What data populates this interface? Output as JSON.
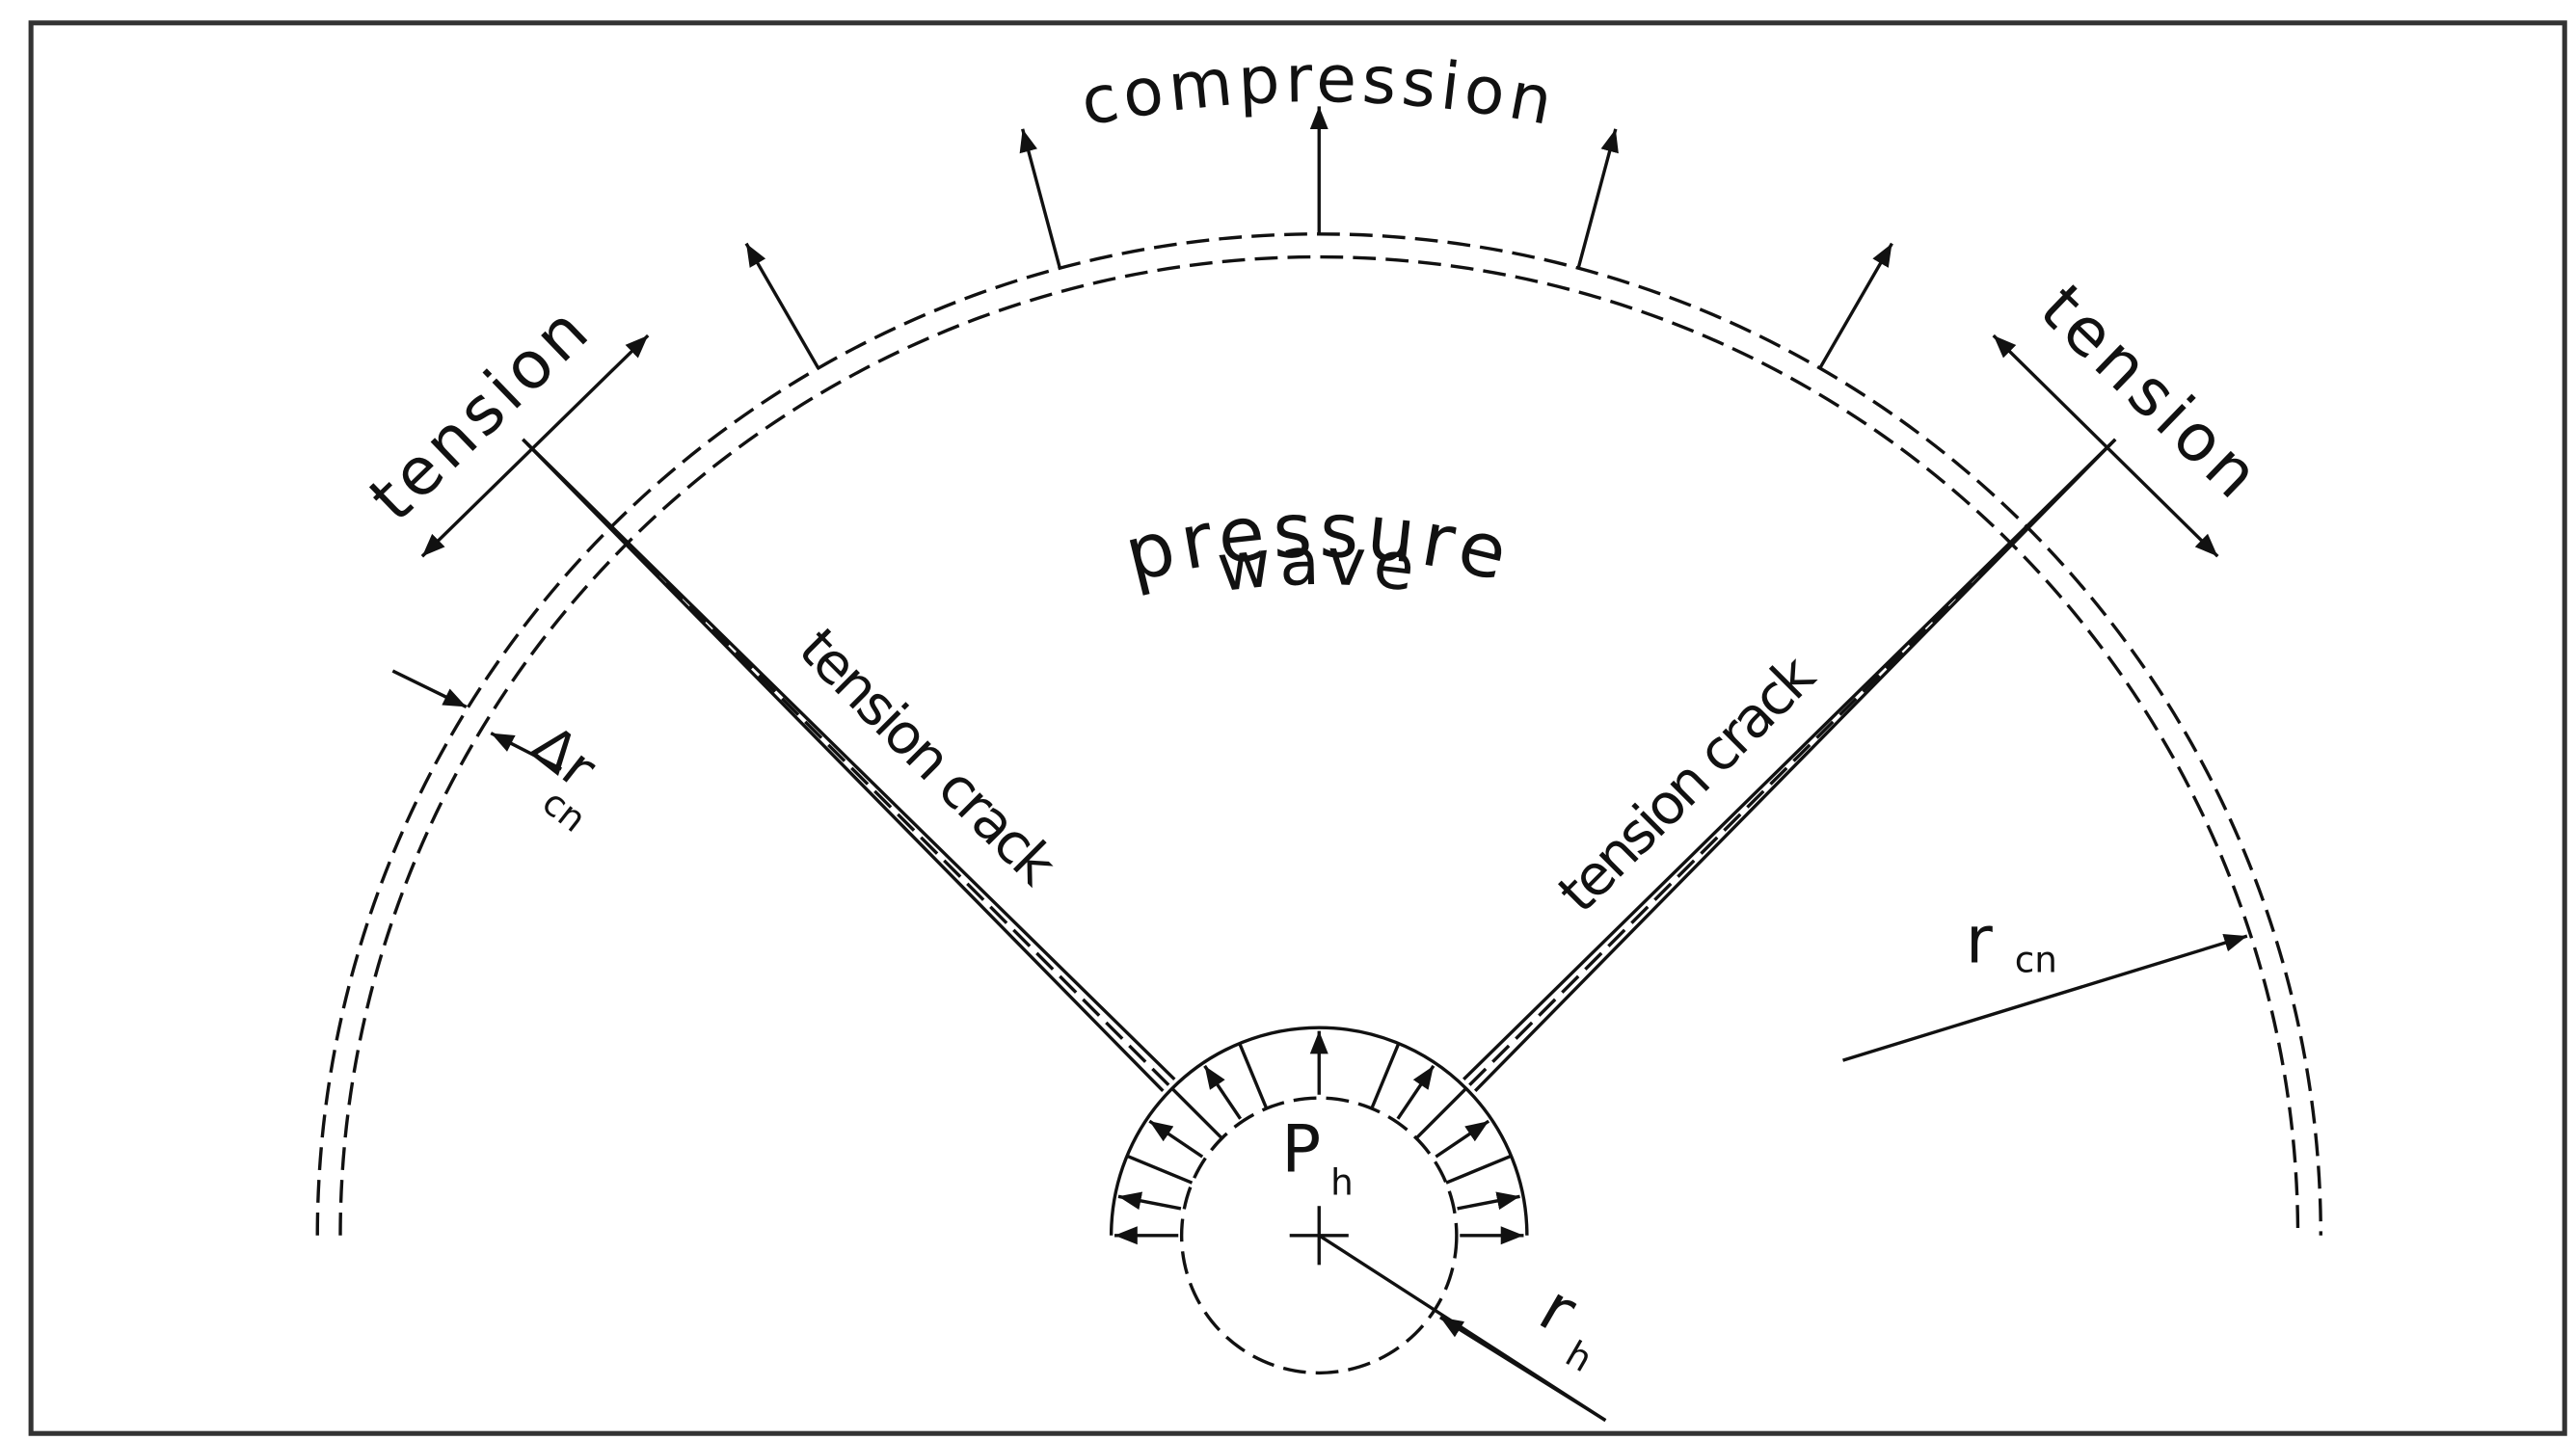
{
  "labels": {
    "compression": "compression",
    "tension_left": "tension",
    "tension_right": "tension",
    "pressure": "pressure",
    "wave": "wave",
    "crack_left": "tension crack",
    "crack_right": "tension crack",
    "delta_r": "Δr",
    "delta_r_sub": "cn",
    "r_cn": "r",
    "r_cn_sub": "cn",
    "p_h": "P",
    "p_h_sub": "h",
    "r_h": "r",
    "r_h_sub": "h"
  }
}
